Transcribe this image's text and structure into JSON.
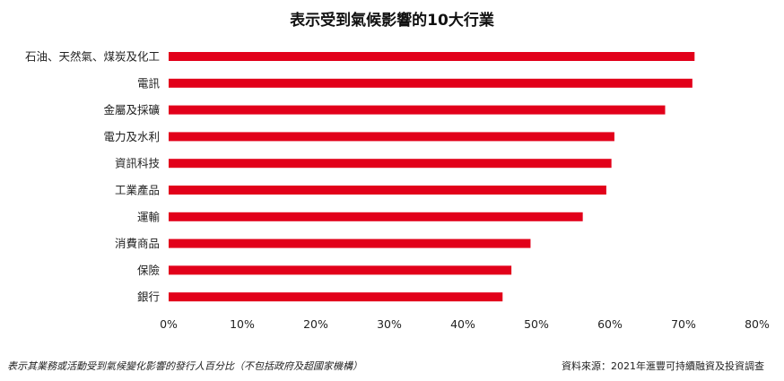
{
  "chart_data": {
    "type": "bar",
    "orientation": "horizontal",
    "title": "表示受到氣候影響的10大行業",
    "categories": [
      "石油、天然氣、煤炭及化工",
      "電訊",
      "金屬及採礦",
      "電力及水利",
      "資訊科技",
      "工業產品",
      "運輸",
      "消費商品",
      "保險",
      "銀行"
    ],
    "values": [
      71.5,
      71.2,
      67.5,
      60.6,
      60.2,
      59.5,
      56.3,
      49.2,
      46.6,
      45.4
    ],
    "xlim": [
      0,
      80
    ],
    "xticks": [
      "0%",
      "10%",
      "20%",
      "30%",
      "40%",
      "50%",
      "60%",
      "70%",
      "80%"
    ],
    "bar_color": "#e2001a",
    "grid": false,
    "legend": "none"
  },
  "footnote": "表示其業務或活動受到氣候變化影響的發行人百分比（不包括政府及超國家機構）",
  "source": "資料來源：2021年滙豐可持續融資及投資調查"
}
